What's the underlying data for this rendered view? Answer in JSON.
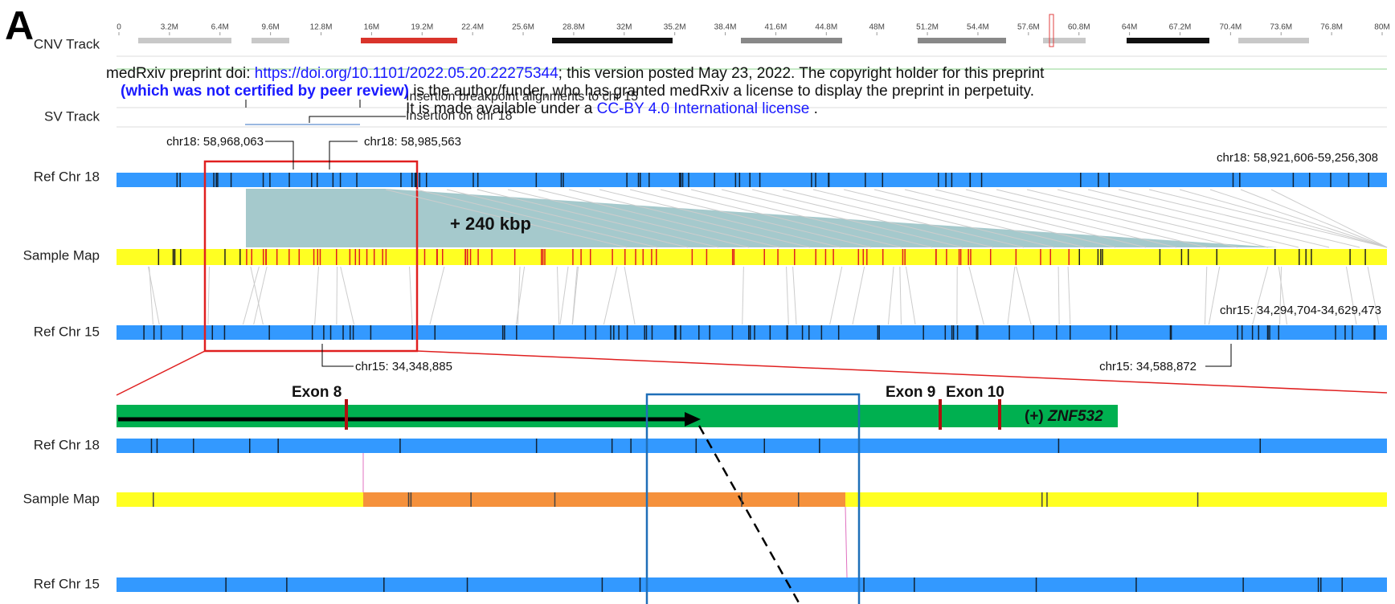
{
  "panel_label": "A",
  "ruler_labels": [
    "0",
    "3.2M",
    "6.4M",
    "9.6M",
    "12.8M",
    "16M",
    "19.2M",
    "22.4M",
    "25.6M",
    "28.8M",
    "32M",
    "35.2M",
    "38.4M",
    "41.6M",
    "44.8M",
    "48M",
    "51.2M",
    "54.4M",
    "57.6M",
    "60.8M",
    "64M",
    "67.2M",
    "70.4M",
    "73.6M",
    "76.8M",
    "80M"
  ],
  "tracks": {
    "cnv": "CNV Track",
    "sv": "SV Track",
    "ref18": "Ref Chr 18",
    "sample": "Sample Map",
    "ref15": "Ref Chr 15"
  },
  "preprint": {
    "line1_prefix": "medRxiv preprint doi: ",
    "doi": "https://doi.org/10.1101/2022.05.20.22275344",
    "line1_suffix": "; this version posted May 23, 2022. The copyright holder for this preprint",
    "line2_bold": "(which was not certified by peer review)",
    "line2_suffix": " is the author/funder, who has granted medRxiv a license to display the preprint in perpetuity.",
    "line3_prefix": "It is made available under a ",
    "license": "CC-BY 4.0 International license",
    "line3_suffix": " ."
  },
  "sv_annotations": {
    "alignments": "Insertion breakpoint alignments to chr 15",
    "insertion": "Insertion on chr 18"
  },
  "coordinates": {
    "chr18_left": "chr18: 58,968,063",
    "chr18_right": "chr18: 58,985,563",
    "chr18_range": "chr18: 58,921,606-59,256,308",
    "chr15_range": "chr15: 34,294,704-34,629,473",
    "chr15_left": "chr15: 34,348,885",
    "chr15_right": "chr15: 34,588,872"
  },
  "insertion_size": "+ 240 kbp",
  "exons": [
    "Exon 8",
    "Exon 9",
    "Exon 10"
  ],
  "gene_strand": "(+)",
  "gene_name": "ZNF532"
}
